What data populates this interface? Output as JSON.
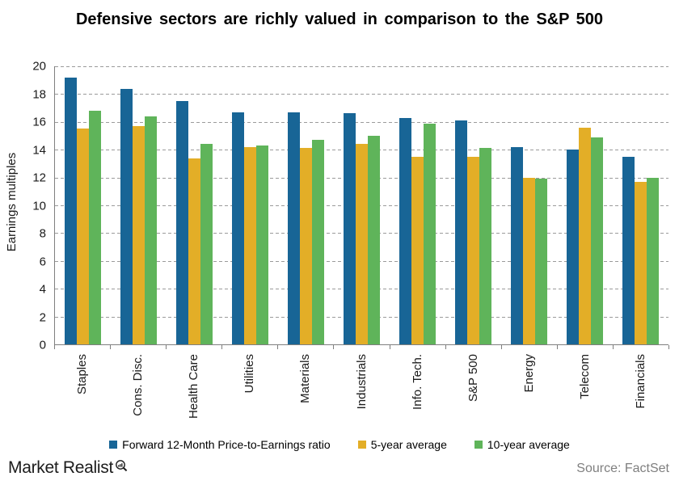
{
  "title": "Defensive sectors are richly valued in comparison to the S&P 500",
  "footer": {
    "logo_text": "Market Realist",
    "logo_icon": "magnifier-chart-icon",
    "source": "Source: FactSet"
  },
  "colors": {
    "forward_blue": "#186596",
    "five_year_gold": "#E3AE27",
    "ten_year_green": "#5FB45A",
    "gridline": "#9B9B9B",
    "axis": "#7F7F7F",
    "source_text": "#7F7F7F"
  },
  "chart_data": {
    "type": "bar",
    "title": "Defensive sectors are richly valued in comparison to the S&P 500",
    "xlabel": "",
    "ylabel": "Earnings multiples",
    "ylim": [
      0,
      20
    ],
    "ytick_step": 2,
    "grid": "horizontal-dashed",
    "legend_position": "bottom",
    "categories": [
      "Staples",
      "Cons. Disc.",
      "Health Care",
      "Utilities",
      "Materials",
      "Industrials",
      "Info. Tech.",
      "S&P 500",
      "Energy",
      "Telecom",
      "Financials"
    ],
    "series": [
      {
        "name": "Forward 12-Month Price-to-Earnings ratio",
        "color": "#186596",
        "values": [
          19.2,
          18.4,
          17.5,
          16.7,
          16.7,
          16.6,
          16.3,
          16.1,
          14.2,
          14.0,
          13.5
        ]
      },
      {
        "name": "5-year average",
        "color": "#E3AE27",
        "values": [
          15.5,
          15.7,
          13.4,
          14.2,
          14.1,
          14.4,
          13.5,
          13.5,
          12.0,
          15.6,
          11.7
        ]
      },
      {
        "name": "10-year average",
        "color": "#5FB45A",
        "values": [
          16.8,
          16.4,
          14.4,
          14.3,
          14.7,
          15.0,
          15.9,
          14.1,
          11.9,
          14.9,
          12.0
        ]
      }
    ]
  }
}
